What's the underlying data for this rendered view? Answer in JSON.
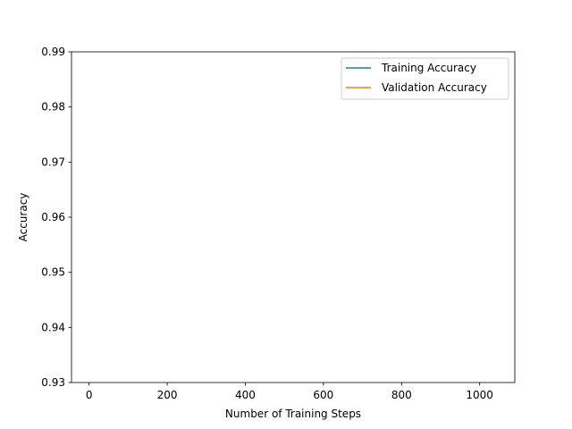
{
  "chart_data": {
    "type": "line",
    "title": "",
    "xlabel": "Number of Training Steps",
    "ylabel": "Accuracy",
    "xlim": [
      -45,
      1090
    ],
    "ylim": [
      0.93,
      0.99
    ],
    "xticks": [
      0,
      200,
      400,
      600,
      800,
      1000
    ],
    "xtick_labels": [
      "0",
      "200",
      "400",
      "600",
      "800",
      "1000"
    ],
    "yticks": [
      0.93,
      0.94,
      0.95,
      0.96,
      0.97,
      0.98,
      0.99
    ],
    "ytick_labels": [
      "0.93",
      "0.94",
      "0.95",
      "0.96",
      "0.97",
      "0.98",
      "0.99"
    ],
    "grid": false,
    "legend_position": "top-right",
    "series": [
      {
        "name": "Training Accuracy",
        "color": "#1f77b4",
        "x": [],
        "y": []
      },
      {
        "name": "Validation Accuracy",
        "color": "#ff7f0e",
        "x": [],
        "y": []
      }
    ]
  }
}
